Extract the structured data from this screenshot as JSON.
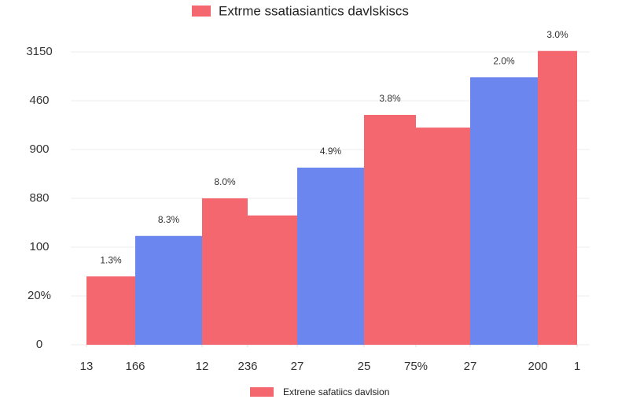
{
  "chart_data": {
    "type": "histogram",
    "title": "Extrme ssatiasiantics davlskiscs",
    "legend_label": "Extrene safatiics davlsion",
    "legend_color": "#f4676e",
    "bins": [
      0,
      6.2,
      14.7,
      20.5,
      26.8,
      35.3,
      41.9,
      48.8,
      57.4,
      62.4
    ],
    "values": [
      1.4,
      2.23,
      3.0,
      2.65,
      3.63,
      4.71,
      4.45,
      5.48,
      6.02
    ],
    "colors": [
      "#f4676e",
      "#6b86ee",
      "#f4676e",
      "#f4676e",
      "#6b86ee",
      "#f4676e",
      "#f4676e",
      "#6b86ee",
      "#f4676e"
    ],
    "bar_annotations": [
      "1.3%",
      "8.3%",
      "8.0%",
      null,
      "4.9%",
      "3.8%",
      null,
      "2.0%",
      "3.0%"
    ],
    "xlim": [
      -2,
      64
    ],
    "ylim": [
      0,
      6.1
    ],
    "yticks": [
      0,
      {
        "value": 1,
        "label": "20%"
      },
      {
        "value": 2,
        "label": "100"
      },
      {
        "value": 3,
        "label": "880"
      },
      {
        "value": 4,
        "label": "900"
      },
      {
        "value": 5,
        "label": "460"
      },
      {
        "value": 6,
        "label": "3150"
      }
    ],
    "xticks": [
      {
        "value": 0,
        "label": "13"
      },
      {
        "value": 6.2,
        "label": "166"
      },
      {
        "value": 14.7,
        "label": "12"
      },
      {
        "value": 20.5,
        "label": "236"
      },
      {
        "value": 26.8,
        "label": "27"
      },
      {
        "value": 35.3,
        "label": "25"
      },
      {
        "value": 41.9,
        "label": "75%"
      },
      {
        "value": 48.8,
        "label": "27"
      },
      {
        "value": 57.4,
        "label": "200"
      },
      {
        "value": 62.4,
        "label": "1"
      }
    ],
    "grid": true
  }
}
